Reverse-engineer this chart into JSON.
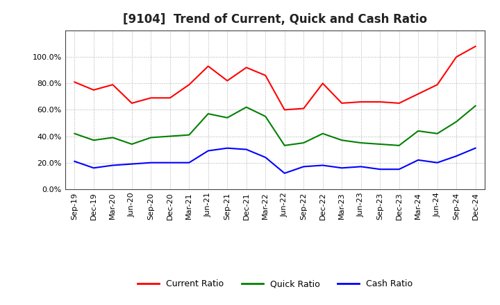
{
  "title": "[9104]  Trend of Current, Quick and Cash Ratio",
  "labels": [
    "Sep-19",
    "Dec-19",
    "Mar-20",
    "Jun-20",
    "Sep-20",
    "Dec-20",
    "Mar-21",
    "Jun-21",
    "Sep-21",
    "Dec-21",
    "Mar-22",
    "Jun-22",
    "Sep-22",
    "Dec-22",
    "Mar-23",
    "Jun-23",
    "Sep-23",
    "Dec-23",
    "Mar-24",
    "Jun-24",
    "Sep-24",
    "Dec-24"
  ],
  "current_ratio": [
    81,
    75,
    79,
    65,
    69,
    69,
    79,
    93,
    82,
    92,
    86,
    60,
    61,
    80,
    65,
    66,
    66,
    65,
    72,
    79,
    100,
    108
  ],
  "quick_ratio": [
    42,
    37,
    39,
    34,
    39,
    40,
    41,
    57,
    54,
    62,
    55,
    33,
    35,
    42,
    37,
    35,
    34,
    33,
    44,
    42,
    51,
    63
  ],
  "cash_ratio": [
    21,
    16,
    18,
    19,
    20,
    20,
    20,
    29,
    31,
    30,
    24,
    12,
    17,
    18,
    16,
    17,
    15,
    15,
    22,
    20,
    25,
    31
  ],
  "current_color": "#ff0000",
  "quick_color": "#008000",
  "cash_color": "#0000ff",
  "ylim": [
    0,
    120
  ],
  "yticks": [
    0,
    20,
    40,
    60,
    80,
    100
  ],
  "background_color": "#ffffff",
  "grid_color": "#aaaaaa",
  "spine_color": "#444444",
  "title_fontsize": 12,
  "legend_fontsize": 9,
  "tick_fontsize": 8
}
